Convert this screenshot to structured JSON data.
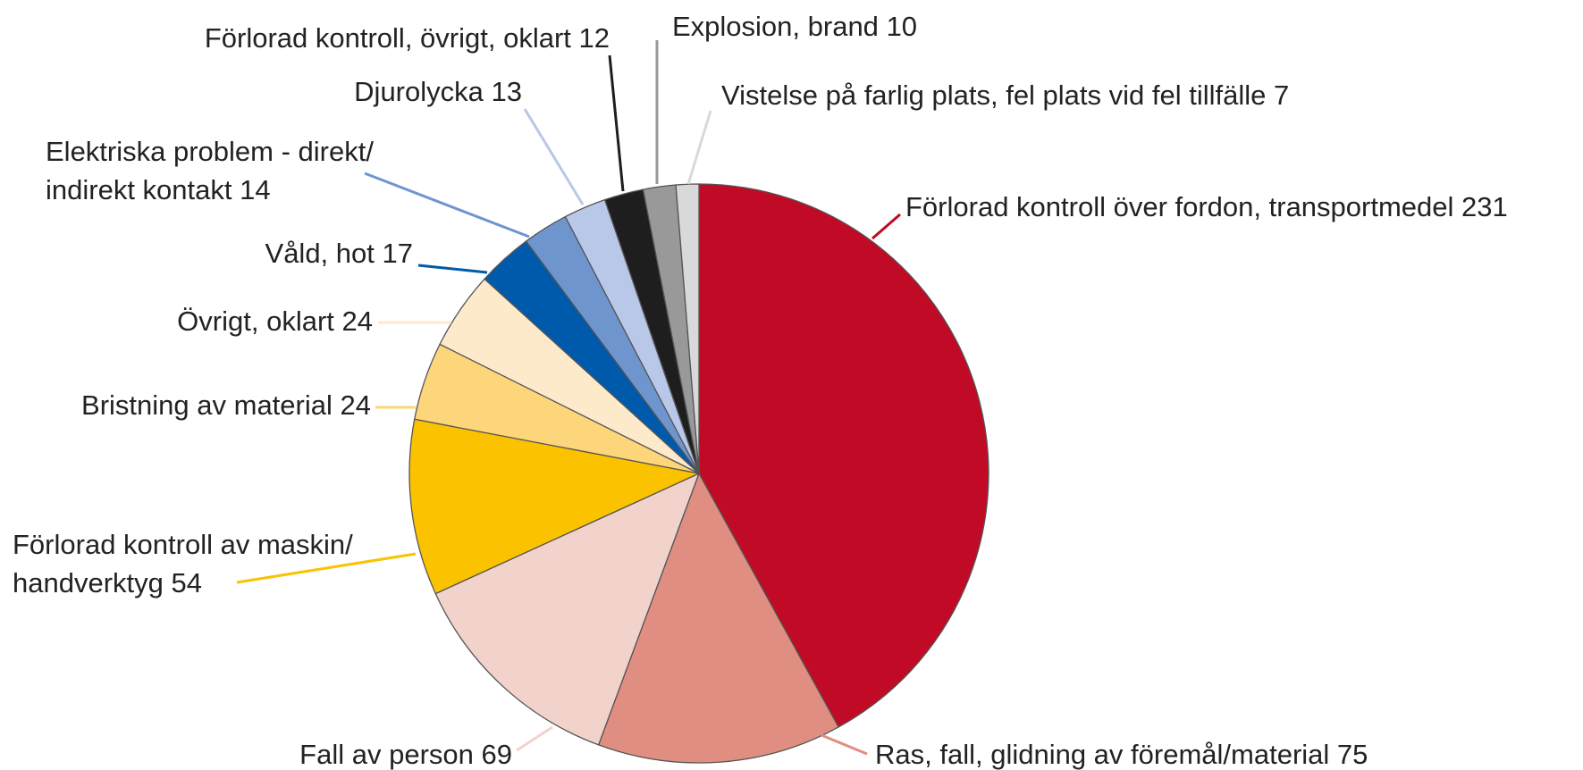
{
  "chart_data": {
    "type": "pie",
    "categories": [
      "Förlorad kontroll över fordon, transportmedel",
      "Ras, fall, glidning av föremål/material",
      "Fall av person",
      "Förlorad kontroll av maskin/ handverktyg",
      "Bristning av material",
      "Övrigt, oklart",
      "Våld, hot",
      "Elektriska problem - direkt/ indirekt kontakt",
      "Djurolycka",
      "Förlorad kontroll, övrigt, oklart",
      "Explosion, brand",
      "Vistelse på farlig plats, fel plats vid fel tillfälle"
    ],
    "values": [
      231,
      75,
      69,
      54,
      24,
      24,
      17,
      14,
      13,
      12,
      10,
      7
    ],
    "colors": [
      "#c00a26",
      "#e08e82",
      "#f2d3cc",
      "#fbc200",
      "#fdd57a",
      "#fdeacb",
      "#005aab",
      "#6f95cf",
      "#b9c7e8",
      "#1e1e1e",
      "#999999",
      "#d9d9d9"
    ]
  }
}
